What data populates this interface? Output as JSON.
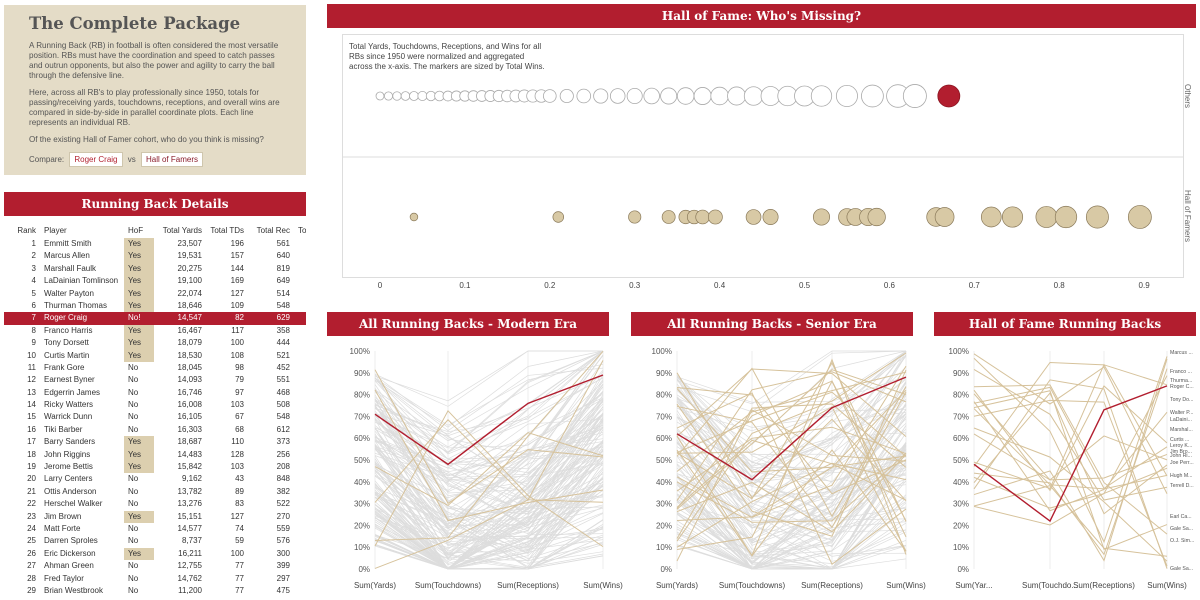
{
  "intro": {
    "title": "The Complete Package",
    "p1": "A Running Back (RB) in football is often considered the most versatile position. RBs must have the coordination and speed to catch passes and outrun opponents, but also the power and agility to carry the ball through the defensive line.",
    "p2": "Here, across all RB's to play professionally since 1950, totals for passing/receiving yards, touchdowns, receptions, and overall wins are compared in side-by-side in parallel coordinate plots. Each line represents an individual RB.",
    "p3": "Of the existing Hall of Famer cohort, who do you think is missing?",
    "compare_label": "Compare:",
    "compare_player": "Roger Craig",
    "vs": "vs",
    "compare_group": "Hall of Famers"
  },
  "details": {
    "title": "Running Back Details",
    "columns": [
      "Rank",
      "Player",
      "HoF",
      "Total Yards",
      "Total TDs",
      "Total Rec",
      "To"
    ],
    "rows": [
      [
        "1",
        "Emmitt Smith",
        "Yes",
        "23,507",
        "196",
        "561"
      ],
      [
        "2",
        "Marcus Allen",
        "Yes",
        "19,531",
        "157",
        "640"
      ],
      [
        "3",
        "Marshall Faulk",
        "Yes",
        "20,275",
        "144",
        "819"
      ],
      [
        "4",
        "LaDainian Tomlinson",
        "Yes",
        "19,100",
        "169",
        "649"
      ],
      [
        "5",
        "Walter Payton",
        "Yes",
        "22,074",
        "127",
        "514"
      ],
      [
        "6",
        "Thurman Thomas",
        "Yes",
        "18,646",
        "109",
        "548"
      ],
      [
        "7",
        "Roger Craig",
        "No!",
        "14,547",
        "82",
        "629"
      ],
      [
        "8",
        "Franco Harris",
        "Yes",
        "16,467",
        "117",
        "358"
      ],
      [
        "9",
        "Tony Dorsett",
        "Yes",
        "18,079",
        "100",
        "444"
      ],
      [
        "10",
        "Curtis Martin",
        "Yes",
        "18,530",
        "108",
        "521"
      ],
      [
        "11",
        "Frank Gore",
        "No",
        "18,045",
        "98",
        "452"
      ],
      [
        "12",
        "Earnest Byner",
        "No",
        "14,093",
        "79",
        "551"
      ],
      [
        "13",
        "Edgerrin James",
        "No",
        "16,746",
        "97",
        "468"
      ],
      [
        "14",
        "Ricky Watters",
        "No",
        "16,008",
        "103",
        "508"
      ],
      [
        "15",
        "Warrick Dunn",
        "No",
        "16,105",
        "67",
        "548"
      ],
      [
        "16",
        "Tiki Barber",
        "No",
        "16,303",
        "68",
        "612"
      ],
      [
        "17",
        "Barry Sanders",
        "Yes",
        "18,687",
        "110",
        "373"
      ],
      [
        "18",
        "John Riggins",
        "Yes",
        "14,483",
        "128",
        "256"
      ],
      [
        "19",
        "Jerome Bettis",
        "Yes",
        "15,842",
        "103",
        "208"
      ],
      [
        "20",
        "Larry Centers",
        "No",
        "9,162",
        "43",
        "848"
      ],
      [
        "21",
        "Ottis Anderson",
        "No",
        "13,782",
        "89",
        "382"
      ],
      [
        "22",
        "Herschel Walker",
        "No",
        "13,276",
        "83",
        "522"
      ],
      [
        "23",
        "Jim Brown",
        "Yes",
        "15,151",
        "127",
        "270"
      ],
      [
        "24",
        "Matt Forte",
        "No",
        "14,577",
        "74",
        "559"
      ],
      [
        "25",
        "Darren Sproles",
        "No",
        "8,737",
        "59",
        "576"
      ],
      [
        "26",
        "Eric Dickerson",
        "Yes",
        "16,211",
        "100",
        "300"
      ],
      [
        "27",
        "Ahman Green",
        "No",
        "12,755",
        "77",
        "399"
      ],
      [
        "28",
        "Fred Taylor",
        "No",
        "14,762",
        "77",
        "297"
      ],
      [
        "29",
        "Brian Westbrook",
        "No",
        "11,200",
        "77",
        "475"
      ]
    ]
  },
  "hof": {
    "title": "Hall of Fame: Who's Missing?",
    "note": "Total Yards, Touchdowns, Receptions, and Wins for all RBs since 1950 were normalized and aggregated across the x-axis. The markers are sized by Total Wins.",
    "facet_top": "Others",
    "facet_bottom": "Hall of Famers",
    "x_ticks": [
      "0",
      "0.1",
      "0.2",
      "0.3",
      "0.4",
      "0.5",
      "0.6",
      "0.7",
      "0.8",
      "0.9"
    ]
  },
  "charts": {
    "modern_title": "All Running Backs - Modern Era",
    "senior_title": "All Running Backs - Senior Era",
    "hof_title": "Hall of Fame Running Backs",
    "y_ticks": [
      "0%",
      "10%",
      "20%",
      "30%",
      "40%",
      "50%",
      "60%",
      "70%",
      "80%",
      "90%",
      "100%"
    ],
    "axes_full": [
      "Sum(Yards)",
      "Sum(Touchdowns)",
      "Sum(Receptions)",
      "Sum(Wins)"
    ],
    "axes_short": [
      "Sum(Yar...",
      "Sum(Touchdo...",
      "Sum(Receptions)",
      "Sum(Wins)"
    ],
    "hof_names": [
      "Marcus ...",
      "Franco ...",
      "Thurma...",
      "Roger C...",
      "Tony Do...",
      "Walter P...",
      "LaDaini...",
      "Marshal...",
      "Curtis ...",
      "Leroy K...",
      "Jim Bro...",
      "John Ri...",
      "Joe Perr...",
      "Hugh M...",
      "Terrell D...",
      "Earl Ca...",
      "Gale Sa...",
      "O.J. Sim...",
      "Gale Sa..."
    ]
  },
  "chart_data": [
    {
      "type": "scatter",
      "title": "Hall of Fame: Who's Missing?",
      "xlim": [
        0,
        0.95
      ],
      "series": [
        {
          "name": "Others",
          "x": [
            0.0,
            0.01,
            0.02,
            0.03,
            0.04,
            0.05,
            0.06,
            0.07,
            0.08,
            0.09,
            0.1,
            0.11,
            0.12,
            0.13,
            0.14,
            0.15,
            0.16,
            0.17,
            0.18,
            0.19,
            0.2,
            0.22,
            0.24,
            0.26,
            0.28,
            0.3,
            0.32,
            0.34,
            0.36,
            0.38,
            0.4,
            0.42,
            0.44,
            0.46,
            0.48,
            0.5,
            0.52,
            0.55,
            0.58,
            0.61,
            0.63,
            0.67
          ]
        },
        {
          "name": "Hall of Famers",
          "x": [
            0.04,
            0.21,
            0.3,
            0.34,
            0.36,
            0.37,
            0.38,
            0.395,
            0.44,
            0.46,
            0.52,
            0.55,
            0.56,
            0.575,
            0.585,
            0.655,
            0.665,
            0.72,
            0.745,
            0.785,
            0.808,
            0.845,
            0.895
          ]
        }
      ]
    }
  ]
}
